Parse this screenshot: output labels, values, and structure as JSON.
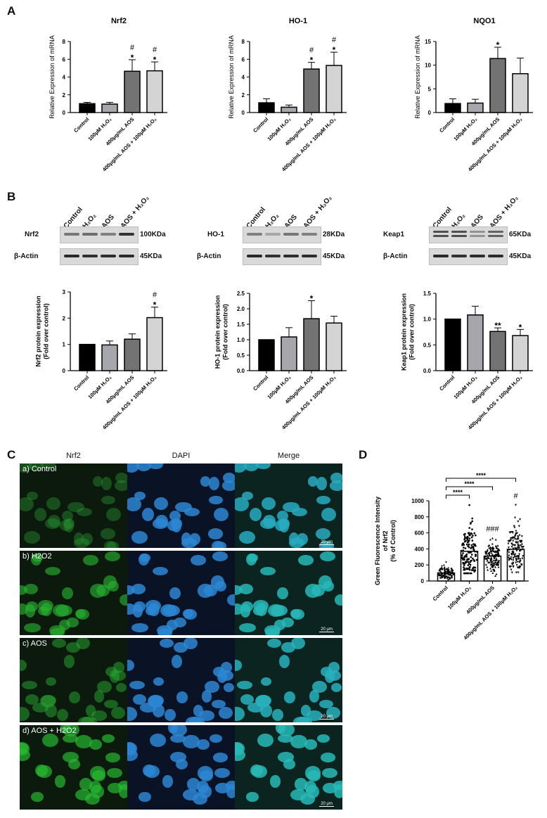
{
  "figure": {
    "panels": {
      "A": "A",
      "B": "B",
      "C": "C",
      "D": "D"
    }
  },
  "categories_long": [
    "Control",
    "100μM H₂O₂",
    "400μg/mL AOS",
    "400μg/mL AOS + 100μM H₂O₂"
  ],
  "blot_lanes": [
    "Control",
    "H₂O₂",
    "AOS",
    "AOS + H₂O₂"
  ],
  "blots": [
    {
      "target": "Nrf2",
      "target_kda": "100KDa",
      "actin": "β-Actin",
      "actin_kda": "45KDa"
    },
    {
      "target": "HO-1",
      "target_kda": "28KDa",
      "actin": "β-Actin",
      "actin_kda": "45KDa"
    },
    {
      "target": "Keap1",
      "target_kda": "65KDa",
      "actin": "β-Actin",
      "actin_kda": "45KDa"
    }
  ],
  "microscopy": {
    "columns": [
      "Nrf2",
      "DAPI",
      "Merge"
    ],
    "rows": [
      "a) Control",
      "b) H2O2",
      "c) AOS",
      "d) AOS + H2O2"
    ],
    "scale_bar": "20 μm"
  },
  "colors": {
    "bar_control": "#000000",
    "bar_h2o2": "#a6a6ad",
    "bar_aos": "#737373",
    "bar_combo": "#d4d4d4",
    "nrf2_green": "#1a6b1a",
    "dapi_blue": "#2f7fc9",
    "merge_cyan": "#2aa6b8"
  },
  "chart_data": [
    {
      "type": "bar",
      "id": "A-Nrf2",
      "title": "Nrf2",
      "categories": [
        "Control",
        "100μM H₂O₂",
        "400μg/mL AOS",
        "400μg/mL AOS + 100μM H₂O₂"
      ],
      "values": [
        1.0,
        0.95,
        4.65,
        4.7
      ],
      "errors": [
        0.15,
        0.2,
        1.3,
        1.0
      ],
      "annotations": [
        "",
        "",
        "#\n*",
        "#\n*"
      ],
      "ylabel": "Relative Expression of mRNA",
      "ylim": [
        0,
        8
      ],
      "yticks": [
        0,
        2,
        4,
        6,
        8
      ]
    },
    {
      "type": "bar",
      "id": "A-HO-1",
      "title": "HO-1",
      "categories": [
        "Control",
        "100μM H₂O₂",
        "400μg/mL AOS",
        "400μg/mL AOS + 100μM H₂O₂"
      ],
      "values": [
        1.1,
        0.6,
        4.9,
        5.3
      ],
      "errors": [
        0.45,
        0.25,
        0.75,
        1.5
      ],
      "annotations": [
        "",
        "",
        "#\n*",
        "#\n*"
      ],
      "ylabel": "Relative Expression of mRNA",
      "ylim": [
        0,
        8
      ],
      "yticks": [
        0,
        2,
        4,
        6,
        8
      ]
    },
    {
      "type": "bar",
      "id": "A-NQO1",
      "title": "NQO1",
      "categories": [
        "Control",
        "100μM H₂O₂",
        "400μg/mL AOS",
        "400μg/mL AOS + 100μM H₂O₂"
      ],
      "values": [
        1.9,
        2.0,
        11.4,
        8.2
      ],
      "errors": [
        1.0,
        0.8,
        2.4,
        3.3
      ],
      "annotations": [
        "",
        "",
        "*",
        ""
      ],
      "ylabel": "Relative Expression of mRNA",
      "ylim": [
        0,
        15
      ],
      "yticks": [
        0,
        5,
        10,
        15
      ]
    },
    {
      "type": "bar",
      "id": "B-Nrf2",
      "title": "",
      "categories": [
        "Control",
        "100μM H₂O₂",
        "400μg/mL AOS",
        "400μg/mL AOS + 100μM H₂O₂"
      ],
      "values": [
        1.0,
        0.98,
        1.2,
        2.02
      ],
      "errors": [
        0,
        0.15,
        0.2,
        0.4
      ],
      "annotations": [
        "",
        "",
        "",
        "#\n*"
      ],
      "ylabel": "Nrf2 protein expression\n(Fold over control)",
      "ylim": [
        0,
        3
      ],
      "yticks": [
        0,
        1,
        2,
        3
      ]
    },
    {
      "type": "bar",
      "id": "B-HO-1",
      "title": "",
      "categories": [
        "Control",
        "100μM H₂O₂",
        "400μg/mL AOS",
        "400μg/mL AOS + 100μM H₂O₂"
      ],
      "values": [
        1.0,
        1.09,
        1.68,
        1.54
      ],
      "errors": [
        0,
        0.3,
        0.58,
        0.22
      ],
      "annotations": [
        "",
        "",
        "*",
        ""
      ],
      "ylabel": "HO-1 protein expression\n(Fold over control)",
      "ylim": [
        0,
        2.5
      ],
      "yticks": [
        0.0,
        0.5,
        1.0,
        1.5,
        2.0,
        2.5
      ]
    },
    {
      "type": "bar",
      "id": "B-Keap1",
      "title": "",
      "categories": [
        "Control",
        "100μM H₂O₂",
        "400μg/mL AOS",
        "400μg/mL AOS + 100μM H₂O₂"
      ],
      "values": [
        1.0,
        1.08,
        0.76,
        0.68
      ],
      "errors": [
        0,
        0.17,
        0.07,
        0.12
      ],
      "annotations": [
        "",
        "",
        "**",
        "*"
      ],
      "ylabel": "Keap1 protein expression\n(Fold over control)",
      "ylim": [
        0,
        1.5
      ],
      "yticks": [
        0.0,
        0.5,
        1.0,
        1.5
      ]
    },
    {
      "type": "bar",
      "id": "D",
      "title": "",
      "categories": [
        "Control",
        "100μM H₂O₂",
        "400μg/mL AOS",
        "400μg/mL AOS + 100μM H₂O₂"
      ],
      "values": [
        100,
        370,
        310,
        395
      ],
      "point_range": [
        [
          20,
          240
        ],
        [
          100,
          950
        ],
        [
          60,
          540
        ],
        [
          110,
          950
        ]
      ],
      "annotations": [
        "",
        "",
        "###",
        "#"
      ],
      "brackets": [
        {
          "from": 0,
          "to": 1,
          "label": "****"
        },
        {
          "from": 0,
          "to": 2,
          "label": "****"
        },
        {
          "from": 0,
          "to": 3,
          "label": "****"
        }
      ],
      "ylabel": "Green Fluorescence Intensity\nof Nrf2\n(% of Control)",
      "ylim": [
        0,
        1000
      ],
      "yticks": [
        0,
        200,
        400,
        600,
        800,
        1000
      ]
    }
  ]
}
